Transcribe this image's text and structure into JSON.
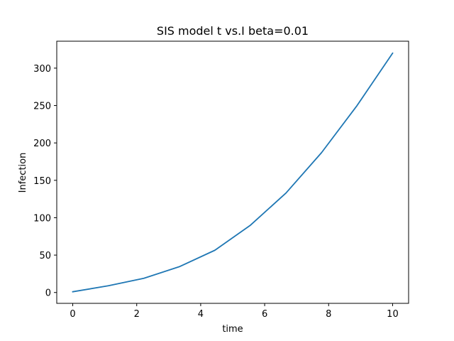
{
  "chart_data": {
    "type": "line",
    "title": "SIS model t vs.I beta=0.01",
    "xlabel": "time",
    "ylabel": "Infection",
    "xlim": [
      -0.5,
      10.5
    ],
    "ylim": [
      -14.5,
      336
    ],
    "xticks": [
      0,
      2,
      4,
      6,
      8,
      10
    ],
    "yticks": [
      0,
      50,
      100,
      150,
      200,
      250,
      300
    ],
    "grid": false,
    "series": [
      {
        "color": "#1f77b4",
        "x": [
          0,
          1.111,
          2.222,
          3.333,
          4.444,
          5.556,
          6.667,
          7.778,
          8.889,
          10
        ],
        "y": [
          1,
          9,
          19,
          34.5,
          56.5,
          90,
          133,
          187,
          250,
          320
        ]
      }
    ]
  }
}
